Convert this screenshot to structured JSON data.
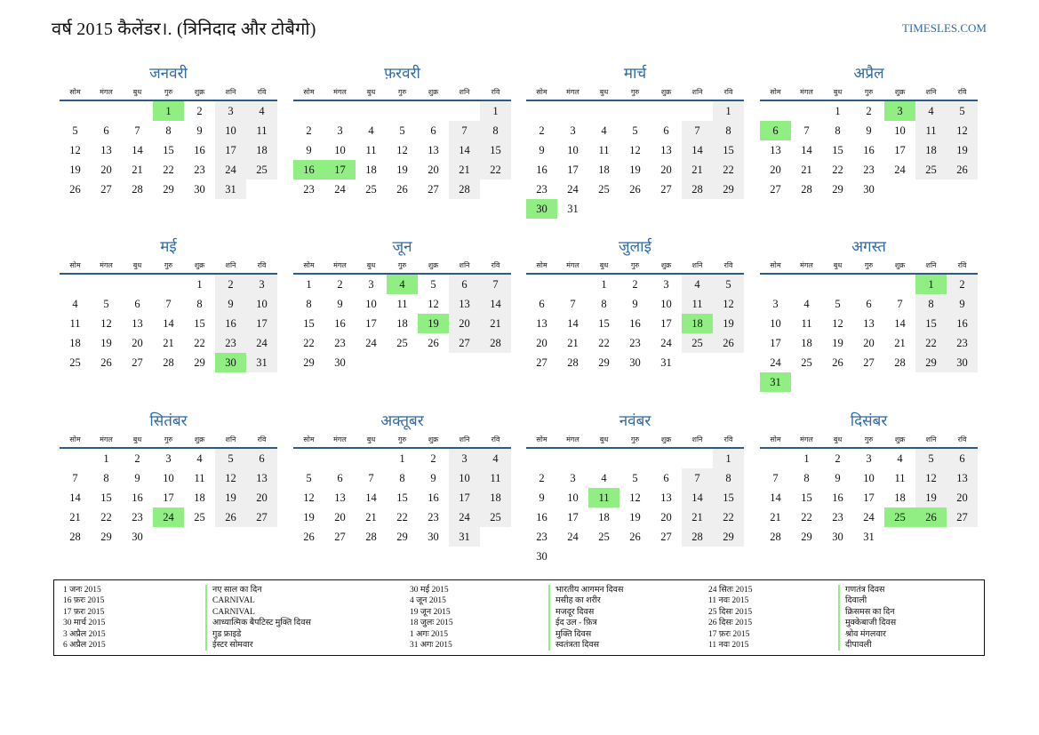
{
  "title": "वर्ष 2015 कैलेंडर।. (त्रिनिदाद और टोबैगो)",
  "site": "TIMESLES.COM",
  "weekdays": [
    "सोम",
    "मंगल",
    "बुध",
    "गुरु",
    "शुक्र",
    "शनि",
    "रवि"
  ],
  "colors": {
    "accent": "#2e6aa8",
    "holiday": "#90ee83",
    "weekend": "#efefef"
  },
  "months": [
    {
      "name": "जनवरी",
      "offset": 3,
      "days": 31,
      "holidays": [
        1
      ]
    },
    {
      "name": "फ़रवरी",
      "offset": 6,
      "days": 28,
      "holidays": [
        16,
        17
      ]
    },
    {
      "name": "मार्च",
      "offset": 6,
      "days": 31,
      "holidays": [
        30
      ]
    },
    {
      "name": "अप्रैल",
      "offset": 2,
      "days": 30,
      "holidays": [
        3,
        6
      ]
    },
    {
      "name": "मई",
      "offset": 4,
      "days": 31,
      "holidays": [
        30
      ]
    },
    {
      "name": "जून",
      "offset": 0,
      "days": 30,
      "holidays": [
        4,
        19
      ]
    },
    {
      "name": "जुलाई",
      "offset": 2,
      "days": 31,
      "holidays": [
        18
      ]
    },
    {
      "name": "अगस्त",
      "offset": 5,
      "days": 31,
      "holidays": [
        1,
        31
      ]
    },
    {
      "name": "सितंबर",
      "offset": 1,
      "days": 30,
      "holidays": [
        24
      ]
    },
    {
      "name": "अक्तूबर",
      "offset": 3,
      "days": 31,
      "holidays": []
    },
    {
      "name": "नवंबर",
      "offset": 6,
      "days": 30,
      "holidays": [
        11
      ]
    },
    {
      "name": "दिसंबर",
      "offset": 1,
      "days": 31,
      "holidays": [
        25,
        26
      ]
    }
  ],
  "legend": [
    {
      "date": "1 जनः 2015",
      "name": "नए साल का दिन"
    },
    {
      "date": "16 फ़रः 2015",
      "name": "CARNIVAL"
    },
    {
      "date": "17 फ़रः 2015",
      "name": "CARNIVAL"
    },
    {
      "date": "30 मार्च 2015",
      "name": "आध्यात्मिक बैपटिस्ट मुक्ति दिवस"
    },
    {
      "date": "3 अप्रैल 2015",
      "name": "गुड फ्राइडे"
    },
    {
      "date": "6 अप्रैल 2015",
      "name": "ईस्टर सोमवार"
    },
    {
      "date": "30 मई 2015",
      "name": "भारतीय आगमन दिवस"
    },
    {
      "date": "4 जून 2015",
      "name": "मसीह का शरीर"
    },
    {
      "date": "19 जून 2015",
      "name": "मजदूर दिवस"
    },
    {
      "date": "18 जुलः 2015",
      "name": "ईद उल - फ़ित्र"
    },
    {
      "date": "1 अगः 2015",
      "name": "मुक्ति दिवस"
    },
    {
      "date": "31 अगः 2015",
      "name": "स्वतंत्रता दिवस"
    },
    {
      "date": "24 सितः 2015",
      "name": "गणतंत्र दिवस"
    },
    {
      "date": "11 नवः 2015",
      "name": "दिवाली"
    },
    {
      "date": "25 दिसः 2015",
      "name": "क्रिसमस का दिन"
    },
    {
      "date": "26 दिसः 2015",
      "name": "मुक्केबाजी दिवस"
    },
    {
      "date": "17 फ़रः 2015",
      "name": "श्रोव मंगलवार"
    },
    {
      "date": "11 नवः 2015",
      "name": "दीपावली"
    }
  ]
}
